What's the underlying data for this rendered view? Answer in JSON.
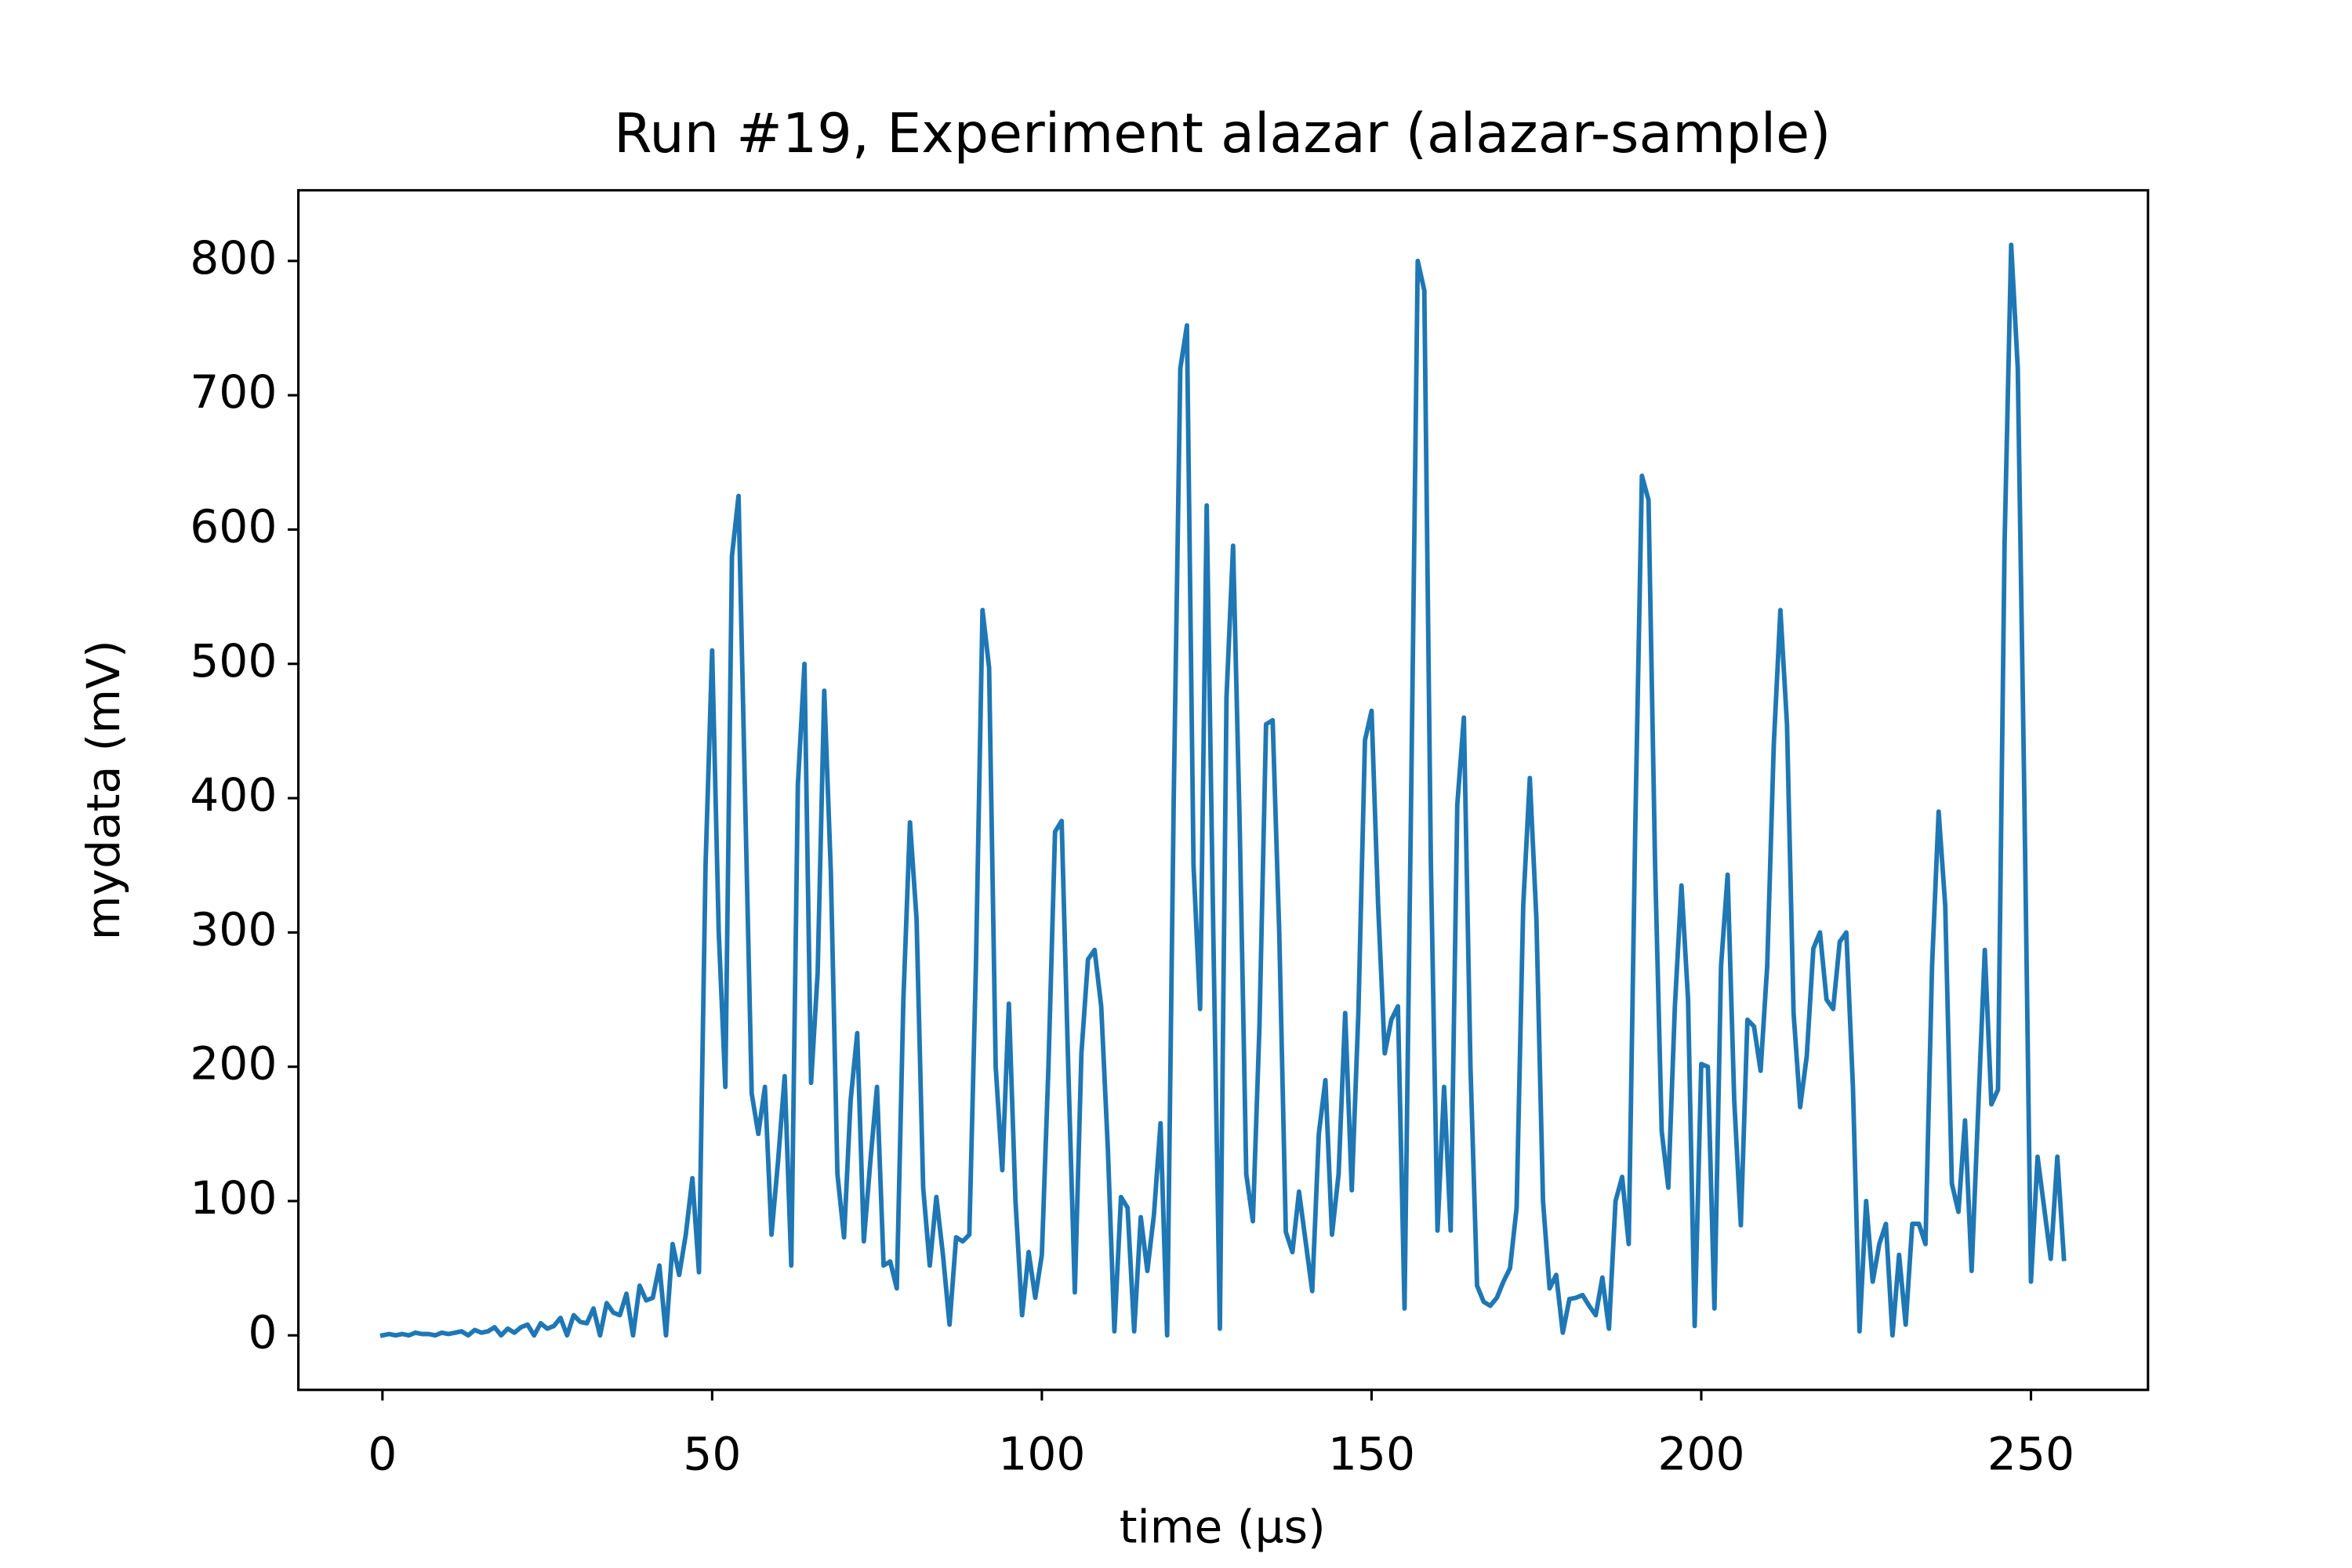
{
  "chart_data": {
    "type": "line",
    "title": "Run #19, Experiment alazar (alazar-sample)",
    "x_label": "time (µs)",
    "y_label": "mydata (mV)",
    "color": "#1f77b4",
    "x": [
      0,
      1,
      2,
      3,
      4,
      5,
      6,
      7,
      8,
      9,
      10,
      11,
      12,
      13,
      14,
      15,
      16,
      17,
      18,
      19,
      20,
      21,
      22,
      23,
      24,
      25,
      26,
      27,
      28,
      29,
      30,
      31,
      32,
      33,
      34,
      35,
      36,
      37,
      38,
      39,
      40,
      41,
      42,
      43,
      44,
      45,
      46,
      47,
      48,
      49,
      50,
      51,
      52,
      53,
      54,
      55,
      56,
      57,
      58,
      59,
      60,
      61,
      62,
      63,
      64,
      65,
      66,
      67,
      68,
      69,
      70,
      71,
      72,
      73,
      74,
      75,
      76,
      77,
      78,
      79,
      80,
      81,
      82,
      83,
      84,
      85,
      86,
      87,
      88,
      89,
      90,
      91,
      92,
      93,
      94,
      95,
      96,
      97,
      98,
      99,
      100,
      101,
      102,
      103,
      104,
      105,
      106,
      107,
      108,
      109,
      110,
      111,
      112,
      113,
      114,
      115,
      116,
      117,
      118,
      119,
      120,
      121,
      122,
      123,
      124,
      125,
      126,
      127,
      128,
      129,
      130,
      131,
      132,
      133,
      134,
      135,
      136,
      137,
      138,
      139,
      140,
      141,
      142,
      143,
      144,
      145,
      146,
      147,
      148,
      149,
      150,
      151,
      152,
      153,
      154,
      155,
      156,
      157,
      158,
      159,
      160,
      161,
      162,
      163,
      164,
      165,
      166,
      167,
      168,
      169,
      170,
      171,
      172,
      173,
      174,
      175,
      176,
      177,
      178,
      179,
      180,
      181,
      182,
      183,
      184,
      185,
      186,
      187,
      188,
      189,
      190,
      191,
      192,
      193,
      194,
      195,
      196,
      197,
      198,
      199,
      200,
      201,
      202,
      203,
      204,
      205,
      206,
      207,
      208,
      209,
      210,
      211,
      212,
      213,
      214,
      215,
      216,
      217,
      218,
      219,
      220,
      221,
      222,
      223,
      224,
      225,
      226,
      227,
      228,
      229,
      230,
      231,
      232,
      233,
      234,
      235,
      236,
      237,
      238,
      239,
      240,
      241,
      242,
      243,
      244,
      245,
      246,
      247,
      248,
      249,
      250,
      251,
      252,
      253,
      254,
      255
    ],
    "values": [
      0,
      1,
      0,
      1,
      0,
      2,
      1,
      1,
      0,
      2,
      1,
      2,
      3,
      0,
      4,
      2,
      3,
      6,
      0,
      5,
      2,
      6,
      8,
      0,
      9,
      5,
      7,
      13,
      0,
      15,
      10,
      9,
      20,
      0,
      24,
      17,
      15,
      31,
      0,
      37,
      26,
      28,
      52,
      0,
      68,
      45,
      75,
      117,
      47,
      350,
      510,
      300,
      185,
      580,
      625,
      400,
      180,
      150,
      185,
      75,
      130,
      193,
      52,
      410,
      500,
      188,
      270,
      480,
      345,
      120,
      73,
      175,
      225,
      70,
      130,
      185,
      52,
      55,
      35,
      250,
      382,
      310,
      110,
      52,
      103,
      60,
      8,
      73,
      70,
      75,
      275,
      540,
      497,
      200,
      123,
      247,
      100,
      15,
      62,
      28,
      60,
      200,
      375,
      383,
      200,
      32,
      210,
      280,
      287,
      245,
      140,
      3,
      103,
      95,
      3,
      88,
      48,
      90,
      158,
      0,
      400,
      720,
      752,
      350,
      243,
      618,
      300,
      5,
      475,
      588,
      380,
      120,
      85,
      230,
      455,
      458,
      300,
      77,
      62,
      107,
      70,
      33,
      150,
      190,
      75,
      120,
      240,
      108,
      240,
      443,
      465,
      320,
      210,
      235,
      245,
      20,
      400,
      800,
      778,
      350,
      78,
      185,
      78,
      395,
      460,
      200,
      37,
      25,
      22,
      28,
      40,
      50,
      95,
      320,
      415,
      310,
      100,
      35,
      45,
      2,
      27,
      28,
      30,
      22,
      15,
      43,
      5,
      100,
      118,
      68,
      380,
      640,
      622,
      350,
      152,
      110,
      245,
      335,
      250,
      7,
      202,
      200,
      20,
      275,
      343,
      175,
      82,
      235,
      230,
      197,
      275,
      440,
      540,
      455,
      240,
      170,
      208,
      288,
      300,
      250,
      243,
      293,
      300,
      185,
      3,
      100,
      40,
      68,
      83,
      0,
      60,
      8,
      83,
      83,
      68,
      275,
      390,
      320,
      113,
      92,
      160,
      48,
      168,
      287,
      172,
      183,
      590,
      812,
      720,
      400,
      40,
      133,
      95,
      57,
      133,
      57
    ],
    "xlim": [
      -12.75,
      267.75
    ],
    "ylim": [
      -40.6,
      852.6
    ],
    "xticks": [
      0,
      50,
      100,
      150,
      200,
      250
    ],
    "yticks": [
      0,
      100,
      200,
      300,
      400,
      500,
      600,
      700,
      800
    ],
    "grid": false
  }
}
